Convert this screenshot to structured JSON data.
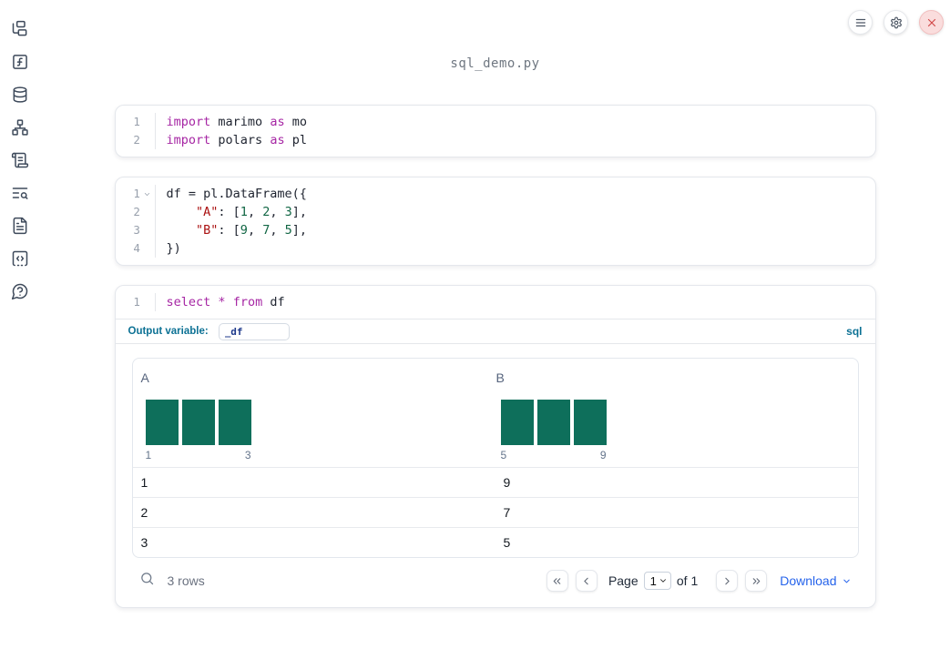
{
  "window": {
    "title": "sql_demo.py"
  },
  "colors": {
    "keyword": "#a626a4",
    "string": "#aa1111",
    "number": "#116644",
    "hist_bar": "#0e6f5b",
    "accent_blue": "#2563eb",
    "sql_accent": "#0c7194",
    "close_red": "#d24949"
  },
  "sidebar": {
    "items": [
      {
        "id": "file-explorer"
      },
      {
        "id": "variables"
      },
      {
        "id": "data-sources"
      },
      {
        "id": "dependencies"
      },
      {
        "id": "logs"
      },
      {
        "id": "outline-search"
      },
      {
        "id": "documentation"
      },
      {
        "id": "scratchpad"
      },
      {
        "id": "help"
      }
    ]
  },
  "top_actions": [
    {
      "id": "menu"
    },
    {
      "id": "settings"
    },
    {
      "id": "shutdown"
    }
  ],
  "cells": [
    {
      "id": "imports",
      "lines": [
        {
          "num": "1",
          "fold": false,
          "tokens": [
            {
              "t": "import",
              "c": "kw"
            },
            {
              "t": " marimo ",
              "c": "pl"
            },
            {
              "t": "as",
              "c": "kw"
            },
            {
              "t": " mo",
              "c": "pl"
            }
          ]
        },
        {
          "num": "2",
          "fold": false,
          "tokens": [
            {
              "t": "import",
              "c": "kw"
            },
            {
              "t": " polars ",
              "c": "pl"
            },
            {
              "t": "as",
              "c": "kw"
            },
            {
              "t": " pl",
              "c": "pl"
            }
          ]
        }
      ]
    },
    {
      "id": "dataframe",
      "lines": [
        {
          "num": "1",
          "fold": true,
          "tokens": [
            {
              "t": "df = pl.DataFrame({",
              "c": "pl"
            }
          ]
        },
        {
          "num": "2",
          "fold": false,
          "tokens": [
            {
              "t": "    ",
              "c": "pl"
            },
            {
              "t": "\"A\"",
              "c": "str"
            },
            {
              "t": ": [",
              "c": "pl"
            },
            {
              "t": "1",
              "c": "num"
            },
            {
              "t": ", ",
              "c": "pl"
            },
            {
              "t": "2",
              "c": "num"
            },
            {
              "t": ", ",
              "c": "pl"
            },
            {
              "t": "3",
              "c": "num"
            },
            {
              "t": "],",
              "c": "pl"
            }
          ]
        },
        {
          "num": "3",
          "fold": false,
          "tokens": [
            {
              "t": "    ",
              "c": "pl"
            },
            {
              "t": "\"B\"",
              "c": "str"
            },
            {
              "t": ": [",
              "c": "pl"
            },
            {
              "t": "9",
              "c": "num"
            },
            {
              "t": ", ",
              "c": "pl"
            },
            {
              "t": "7",
              "c": "num"
            },
            {
              "t": ", ",
              "c": "pl"
            },
            {
              "t": "5",
              "c": "num"
            },
            {
              "t": "],",
              "c": "pl"
            }
          ]
        },
        {
          "num": "4",
          "fold": false,
          "tokens": [
            {
              "t": "})",
              "c": "pl"
            }
          ]
        }
      ]
    },
    {
      "id": "sql",
      "lines": [
        {
          "num": "1",
          "fold": false,
          "tokens": [
            {
              "t": "select",
              "c": "kw"
            },
            {
              "t": " ",
              "c": "pl"
            },
            {
              "t": "*",
              "c": "kw"
            },
            {
              "t": " ",
              "c": "pl"
            },
            {
              "t": "from",
              "c": "kw"
            },
            {
              "t": " df",
              "c": "pl"
            }
          ]
        }
      ],
      "output_variable_label": "Output variable:",
      "output_variable_value": "_df",
      "language_badge": "sql"
    }
  ],
  "table": {
    "columns": [
      {
        "name": "A",
        "hist": {
          "type": "bar",
          "values": [
            1,
            1,
            1
          ],
          "min_label": "1",
          "max_label": "3"
        }
      },
      {
        "name": "B",
        "hist": {
          "type": "bar",
          "values": [
            1,
            1,
            1
          ],
          "min_label": "5",
          "max_label": "9"
        }
      }
    ],
    "rows": [
      [
        "1",
        "9"
      ],
      [
        "2",
        "7"
      ],
      [
        "3",
        "5"
      ]
    ],
    "footer": {
      "row_count": "3 rows",
      "page_label": "Page",
      "page_value": "1",
      "of_label": "of 1",
      "download_label": "Download"
    }
  }
}
